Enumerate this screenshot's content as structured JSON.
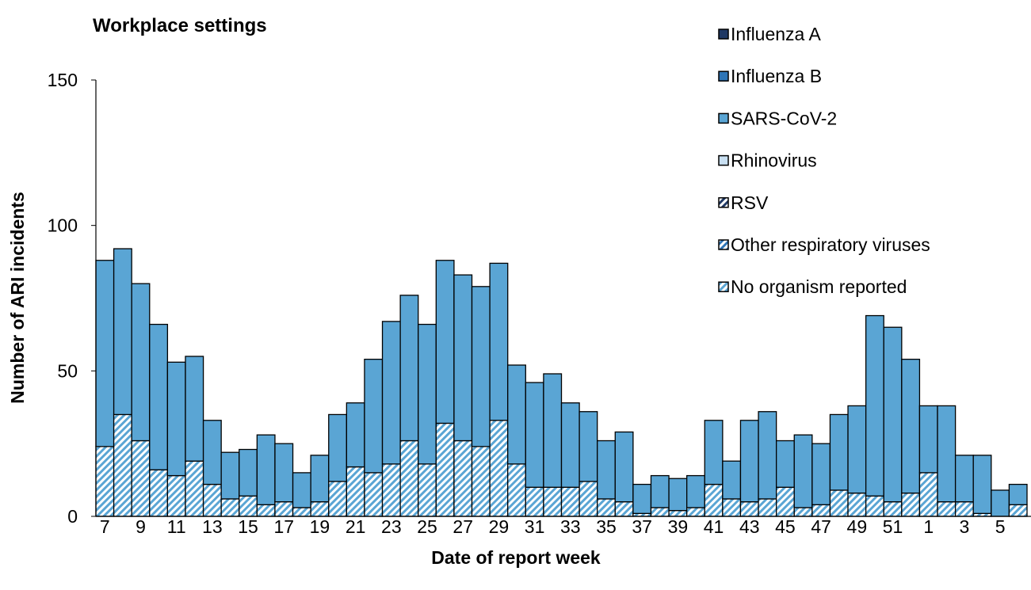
{
  "chart_data": {
    "type": "stacked_bar",
    "title": "Workplace settings",
    "xlabel": "Date of report week",
    "ylabel": "Number of ARI incidents",
    "categories": [
      "7",
      null,
      "9",
      null,
      "11",
      null,
      "13",
      null,
      "15",
      null,
      "17",
      null,
      "19",
      null,
      "21",
      null,
      "23",
      null,
      "25",
      null,
      "27",
      null,
      "29",
      null,
      "31",
      null,
      "33",
      null,
      "35",
      null,
      "37",
      null,
      "39",
      null,
      "41",
      null,
      "43",
      null,
      "45",
      null,
      "47",
      null,
      "49",
      null,
      "51",
      null,
      "1",
      null,
      "3",
      null,
      "5",
      null
    ],
    "ylim": [
      0,
      150
    ],
    "yticks": [
      0,
      50,
      100,
      150
    ],
    "grid": false,
    "legend": "top-right",
    "series": [
      {
        "name": "Influenza A",
        "color": "#1f3864",
        "hatched": false,
        "values": [
          0,
          0,
          0,
          0,
          0,
          0,
          0,
          0,
          0,
          0,
          0,
          0,
          0,
          0,
          0,
          0,
          0,
          0,
          0,
          0,
          0,
          0,
          0,
          0,
          0,
          0,
          0,
          0,
          0,
          0,
          0,
          0,
          0,
          0,
          0,
          0,
          0,
          0,
          0,
          0,
          0,
          0,
          0,
          0,
          0,
          0,
          0,
          0,
          0,
          0,
          0,
          0
        ]
      },
      {
        "name": "Influenza B",
        "color": "#2e75b6",
        "hatched": false,
        "values": [
          0,
          0,
          0,
          0,
          0,
          0,
          0,
          0,
          0,
          0,
          0,
          0,
          0,
          0,
          0,
          0,
          0,
          0,
          0,
          0,
          0,
          0,
          0,
          0,
          0,
          0,
          0,
          0,
          0,
          0,
          0,
          0,
          0,
          0,
          0,
          0,
          0,
          0,
          0,
          0,
          0,
          0,
          0,
          0,
          0,
          0,
          0,
          0,
          0,
          0,
          0,
          0
        ]
      },
      {
        "name": "SARS-CoV-2",
        "color": "#5aa5d4",
        "hatched": false,
        "values": [
          64,
          57,
          54,
          50,
          39,
          36,
          22,
          16,
          16,
          24,
          20,
          12,
          16,
          23,
          22,
          39,
          49,
          50,
          48,
          56,
          57,
          55,
          54,
          34,
          36,
          39,
          29,
          24,
          20,
          24,
          10,
          11,
          11,
          11,
          22,
          13,
          28,
          30,
          16,
          25,
          21,
          26,
          30,
          62,
          60,
          46,
          23,
          33,
          16,
          20,
          9,
          7
        ]
      },
      {
        "name": "Rhinovirus",
        "color": "#c9e0f2",
        "hatched": false,
        "values": [
          0,
          0,
          0,
          0,
          0,
          0,
          0,
          0,
          0,
          0,
          0,
          0,
          0,
          0,
          0,
          0,
          0,
          0,
          0,
          0,
          0,
          0,
          0,
          0,
          0,
          0,
          0,
          0,
          0,
          0,
          0,
          0,
          0,
          0,
          0,
          0,
          0,
          0,
          0,
          0,
          0,
          0,
          0,
          0,
          0,
          0,
          0,
          0,
          0,
          0,
          0,
          0
        ]
      },
      {
        "name": "RSV",
        "color": "#1f3864",
        "hatched": true,
        "values": [
          0,
          0,
          0,
          0,
          0,
          0,
          0,
          0,
          0,
          0,
          0,
          0,
          0,
          0,
          0,
          0,
          0,
          0,
          0,
          0,
          0,
          0,
          0,
          0,
          0,
          0,
          0,
          0,
          0,
          0,
          0,
          0,
          0,
          0,
          0,
          0,
          0,
          0,
          0,
          0,
          0,
          0,
          0,
          0,
          0,
          0,
          0,
          0,
          0,
          0,
          0,
          0
        ]
      },
      {
        "name": "Other respiratory viruses",
        "color": "#2e75b6",
        "hatched": true,
        "values": [
          0,
          0,
          0,
          0,
          0,
          0,
          0,
          0,
          0,
          0,
          0,
          0,
          0,
          0,
          0,
          0,
          0,
          0,
          0,
          0,
          0,
          0,
          0,
          0,
          0,
          0,
          0,
          0,
          0,
          0,
          0,
          0,
          0,
          0,
          0,
          0,
          0,
          0,
          0,
          0,
          0,
          0,
          0,
          0,
          0,
          0,
          0,
          0,
          0,
          0,
          0,
          0
        ]
      },
      {
        "name": "No organism reported",
        "color": "#5aa5d4",
        "hatched": true,
        "values": [
          24,
          35,
          26,
          16,
          14,
          19,
          11,
          6,
          7,
          4,
          5,
          3,
          5,
          12,
          17,
          15,
          18,
          26,
          18,
          32,
          26,
          24,
          33,
          18,
          10,
          10,
          10,
          12,
          6,
          5,
          1,
          3,
          2,
          3,
          11,
          6,
          5,
          6,
          10,
          3,
          4,
          9,
          8,
          7,
          5,
          8,
          15,
          5,
          5,
          1,
          0,
          4
        ]
      }
    ]
  }
}
